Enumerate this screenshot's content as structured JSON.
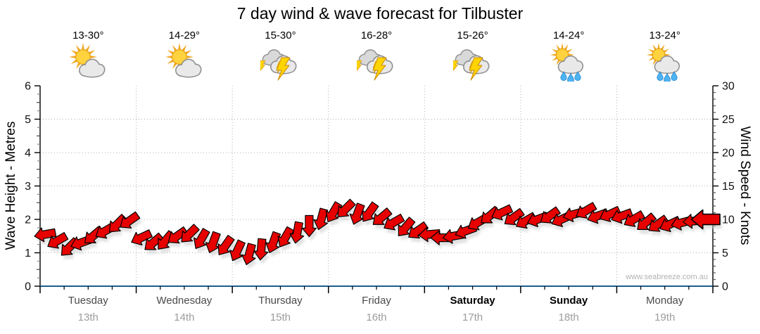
{
  "watermark": "www.seabreeze.com.au",
  "days": [
    {
      "name": "Tuesday",
      "date": "13th",
      "temp": "13-30°",
      "icon": "sun-cloud",
      "weekend": false
    },
    {
      "name": "Wednesday",
      "date": "14th",
      "temp": "14-29°",
      "icon": "sun-cloud",
      "weekend": false
    },
    {
      "name": "Thursday",
      "date": "15th",
      "temp": "15-30°",
      "icon": "storm",
      "weekend": false
    },
    {
      "name": "Friday",
      "date": "16th",
      "temp": "16-28°",
      "icon": "storm",
      "weekend": false
    },
    {
      "name": "Saturday",
      "date": "17th",
      "temp": "15-26°",
      "icon": "storm",
      "weekend": true
    },
    {
      "name": "Sunday",
      "date": "18th",
      "temp": "14-24°",
      "icon": "sun-cloud-rain",
      "weekend": true
    },
    {
      "name": "Monday",
      "date": "19th",
      "temp": "13-24°",
      "icon": "sun-cloud-rain",
      "weekend": false
    }
  ],
  "chart_data": {
    "type": "wind_arrow_band",
    "title": "7 day wind & wave forecast for Tilbuster",
    "left_axis": {
      "label": "Wave Height - Metres",
      "min": 0,
      "max": 6,
      "ticks": [
        0,
        1,
        2,
        3,
        4,
        5,
        6
      ]
    },
    "right_axis": {
      "label": "Wind Speed - Knots",
      "min": 0,
      "max": 30,
      "ticks": [
        0,
        5,
        10,
        15,
        20,
        25,
        30
      ]
    },
    "x_categories": [
      "Tuesday 13th",
      "Wednesday 14th",
      "Thursday 15th",
      "Friday 16th",
      "Saturday 17th",
      "Sunday 18th",
      "Monday 19th"
    ],
    "interval_hours": 3,
    "grid": "dotted-horizontal-and-day-separators",
    "wave_height_m": [
      1.55,
      1.35,
      1.15,
      1.3,
      1.5,
      1.65,
      1.85,
      1.95,
      1.45,
      1.3,
      1.35,
      1.5,
      1.55,
      1.4,
      1.3,
      1.2,
      1.05,
      0.95,
      1.1,
      1.3,
      1.45,
      1.6,
      1.8,
      2.0,
      2.2,
      2.3,
      2.15,
      2.2,
      2.05,
      1.9,
      1.75,
      1.65,
      1.55,
      1.45,
      1.5,
      1.65,
      1.9,
      2.1,
      2.2,
      2.05,
      1.95,
      2.0,
      2.1,
      2.0,
      2.15,
      2.25,
      2.1,
      2.15,
      2.1,
      2.0,
      1.9,
      1.85,
      1.85,
      1.9,
      1.95,
      2.0
    ],
    "wind_speed_knots": [
      7.8,
      6.8,
      5.8,
      6.5,
      7.5,
      8.3,
      9.3,
      9.8,
      7.3,
      6.5,
      6.8,
      7.5,
      7.8,
      7.0,
      6.5,
      6.0,
      5.3,
      4.8,
      5.5,
      6.5,
      7.3,
      8.0,
      9.0,
      10.0,
      11.0,
      11.5,
      10.8,
      11.0,
      10.3,
      9.5,
      8.8,
      8.3,
      7.8,
      7.3,
      7.5,
      8.3,
      9.5,
      10.5,
      11.0,
      10.3,
      9.8,
      10.0,
      10.5,
      10.0,
      10.8,
      11.3,
      10.5,
      10.8,
      10.5,
      10.0,
      9.5,
      9.3,
      9.3,
      9.5,
      9.8,
      10.0
    ],
    "direction_deg_cw_from_right": [
      170,
      150,
      135,
      160,
      140,
      150,
      135,
      145,
      155,
      140,
      130,
      145,
      135,
      120,
      110,
      125,
      115,
      105,
      95,
      110,
      120,
      100,
      90,
      105,
      120,
      135,
      110,
      125,
      140,
      150,
      130,
      145,
      175,
      180,
      170,
      160,
      150,
      140,
      155,
      145,
      150,
      160,
      145,
      155,
      165,
      150,
      160,
      155,
      160,
      150,
      140,
      145,
      155,
      165,
      175,
      180
    ],
    "colors": {
      "arrow": "#e60000",
      "arrow_outline": "#000000",
      "arrow_shadow": "#c9c9c9",
      "bottom_axis_line": "#1b5e8c",
      "grid": "#b0b0b0",
      "tick_major": "#000000",
      "tick_minor": "#888888",
      "day_label": "#4a4a4a",
      "date_label": "#9c9c9c",
      "sun": "#ffd23e",
      "sun_rays": "#f1a722",
      "cloud": "#e9e9e9",
      "bolt": "#ffd400",
      "raindrop": "#4db3f2"
    }
  }
}
